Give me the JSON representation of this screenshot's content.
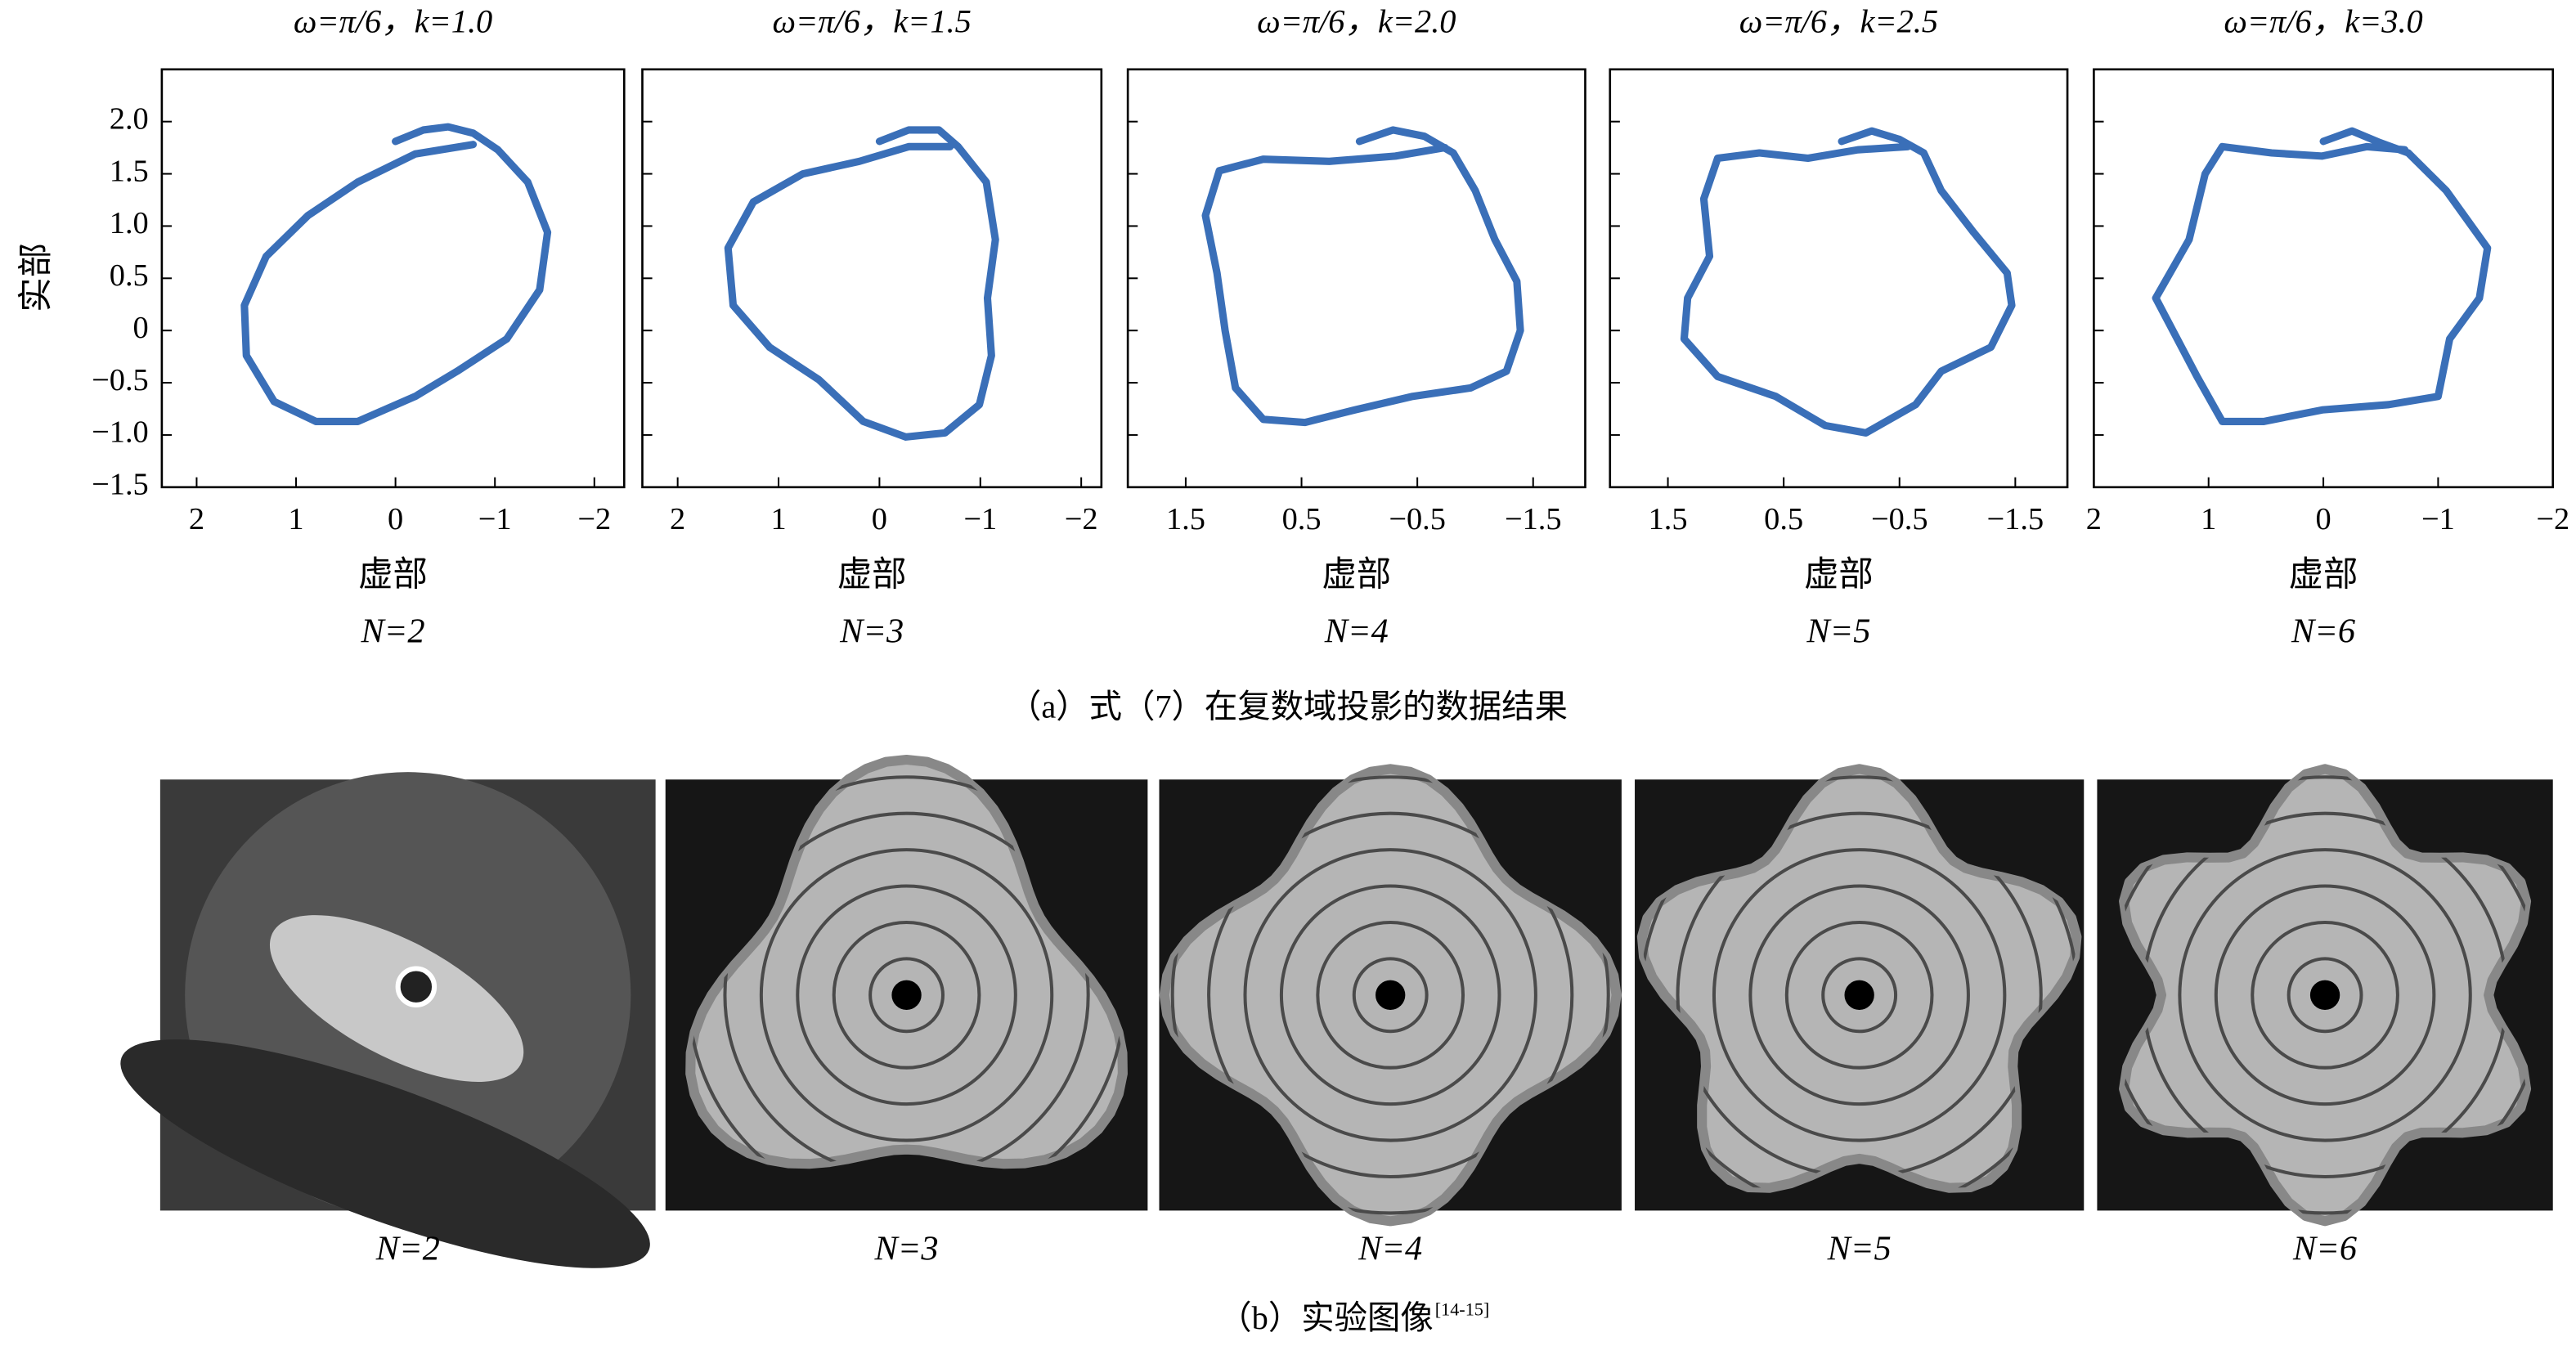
{
  "chart_data": [
    {
      "type": "line",
      "title": "ω=π/6，k=1.0",
      "xlabel": "虚部",
      "ylabel": "实部",
      "subtitle": "N=2",
      "color": "#3a6fb8",
      "show_ytick_labels": true,
      "xlim": [
        2.35,
        -2.3
      ],
      "ylim": [
        -1.5,
        2.5
      ],
      "xticks": [
        2,
        1,
        0,
        {
          "value": -1,
          "label": "−1"
        },
        {
          "value": -2,
          "label": "−2"
        }
      ],
      "yticks": [
        {
          "value": -1.5,
          "label": "−1.5"
        },
        {
          "value": -1,
          "label": "−1.0"
        },
        {
          "value": -0.5,
          "label": "−0.5"
        },
        0,
        0.5,
        {
          "value": 1,
          "label": "1.0"
        },
        1.5,
        {
          "value": 2,
          "label": "2.0"
        }
      ],
      "x": [
        0,
        -0.28,
        -0.53,
        -0.78,
        -1.03,
        -1.33,
        -1.53,
        -1.45,
        -1.12,
        -0.62,
        -0.2,
        0.38,
        0.8,
        1.22,
        1.5,
        1.52,
        1.3,
        0.88,
        0.38,
        -0.2,
        -0.78
      ],
      "values": [
        1.81,
        1.92,
        1.95,
        1.89,
        1.73,
        1.42,
        0.94,
        0.39,
        -0.08,
        -0.39,
        -0.63,
        -0.87,
        -0.87,
        -0.68,
        -0.24,
        0.24,
        0.71,
        1.1,
        1.42,
        1.69,
        1.78
      ]
    },
    {
      "type": "line",
      "title": "ω=π/6，k=1.5",
      "xlabel": "虚部",
      "subtitle": "N=3",
      "color": "#3a6fb8",
      "show_ytick_labels": false,
      "xlim": [
        2.35,
        -2.2
      ],
      "ylim": [
        -1.5,
        2.5
      ],
      "xticks": [
        2,
        1,
        0,
        {
          "value": -1,
          "label": "−1"
        },
        {
          "value": -2,
          "label": "−2"
        }
      ],
      "yticks": [
        -1.5,
        -1,
        -0.5,
        0,
        0.5,
        1,
        1.5,
        2
      ],
      "x": [
        0,
        -0.29,
        -0.59,
        -0.78,
        -1.06,
        -1.15,
        -1.07,
        -1.11,
        -0.99,
        -0.65,
        -0.26,
        0.16,
        0.6,
        1.09,
        1.45,
        1.5,
        1.25,
        0.76,
        0.2,
        -0.29,
        -0.7
      ],
      "values": [
        1.81,
        1.92,
        1.92,
        1.76,
        1.42,
        0.87,
        0.31,
        -0.24,
        -0.71,
        -0.98,
        -1.02,
        -0.87,
        -0.47,
        -0.16,
        0.24,
        0.79,
        1.23,
        1.5,
        1.62,
        1.76,
        1.76
      ]
    },
    {
      "type": "line",
      "title": "ω=π/6，k=2.0",
      "xlabel": "虚部",
      "subtitle": "N=4",
      "color": "#3a6fb8",
      "show_ytick_labels": false,
      "xlim": [
        2.0,
        -1.95
      ],
      "ylim": [
        -1.5,
        2.5
      ],
      "xticks": [
        1.5,
        0.5,
        {
          "value": -0.5,
          "label": "−0.5"
        },
        {
          "value": -1.5,
          "label": "−1.5"
        }
      ],
      "yticks": [
        -1.5,
        -1,
        -0.5,
        0,
        0.5,
        1,
        1.5,
        2
      ],
      "x": [
        0,
        -0.29,
        -0.56,
        -0.81,
        -1.0,
        -1.17,
        -1.36,
        -1.39,
        -1.27,
        -0.96,
        -0.46,
        0.04,
        0.47,
        0.83,
        1.07,
        1.16,
        1.23,
        1.33,
        1.21,
        0.83,
        0.26,
        -0.31,
        -0.74
      ],
      "values": [
        1.81,
        1.92,
        1.86,
        1.7,
        1.34,
        0.87,
        0.47,
        0,
        -0.39,
        -0.55,
        -0.63,
        -0.76,
        -0.88,
        -0.85,
        -0.55,
        0,
        0.55,
        1.1,
        1.53,
        1.64,
        1.62,
        1.67,
        1.75
      ]
    },
    {
      "type": "line",
      "title": "ω=π/6，k=2.5",
      "xlabel": "虚部",
      "subtitle": "N=5",
      "color": "#3a6fb8",
      "show_ytick_labels": false,
      "xlim": [
        2.0,
        -1.95
      ],
      "ylim": [
        -1.5,
        2.5
      ],
      "xticks": [
        1.5,
        0.5,
        {
          "value": -0.5,
          "label": "−0.5"
        },
        {
          "value": -1.5,
          "label": "−1.5"
        }
      ],
      "yticks": [
        -1.5,
        -1,
        -0.5,
        0,
        0.5,
        1,
        1.5,
        2
      ],
      "x": [
        0,
        -0.26,
        -0.5,
        -0.71,
        -0.86,
        -1.14,
        -1.43,
        -1.47,
        -1.29,
        -0.86,
        -0.64,
        -0.21,
        0.14,
        0.57,
        1.07,
        1.36,
        1.33,
        1.14,
        1.19,
        1.07,
        0.71,
        0.29,
        -0.14,
        -0.57
      ],
      "values": [
        1.81,
        1.91,
        1.83,
        1.7,
        1.34,
        0.94,
        0.55,
        0.24,
        -0.16,
        -0.39,
        -0.71,
        -0.98,
        -0.91,
        -0.63,
        -0.44,
        -0.08,
        0.31,
        0.71,
        1.26,
        1.65,
        1.7,
        1.65,
        1.73,
        1.76
      ]
    },
    {
      "type": "line",
      "title": "ω=π/6，k=3.0",
      "xlabel": "虚部",
      "subtitle": "N=6",
      "color": "#3a6fb8",
      "show_ytick_labels": false,
      "xlim": [
        2,
        -2
      ],
      "ylim": [
        -1.5,
        2.5
      ],
      "xticks": [
        2,
        1,
        0,
        {
          "value": -1,
          "label": "−1"
        },
        {
          "value": -2,
          "label": "−2"
        }
      ],
      "yticks": [
        -1.5,
        -1,
        -0.5,
        0,
        0.5,
        1,
        1.5,
        2
      ],
      "x": [
        0,
        -0.25,
        -0.49,
        -0.74,
        -1.07,
        -1.43,
        -1.36,
        -1.1,
        -1.0,
        -0.57,
        0.01,
        0.52,
        0.88,
        1.1,
        1.46,
        1.17,
        1.03,
        0.88,
        0.45,
        0.01,
        -0.38,
        -0.71
      ],
      "values": [
        1.81,
        1.91,
        1.8,
        1.7,
        1.34,
        0.79,
        0.31,
        -0.08,
        -0.63,
        -0.71,
        -0.76,
        -0.87,
        -0.87,
        -0.44,
        0.31,
        0.87,
        1.5,
        1.76,
        1.7,
        1.67,
        1.76,
        1.73
      ]
    }
  ],
  "figure": {
    "caption_a": "（a）式（7）在复数域投影的数据结果",
    "photo_labels": [
      "N=2",
      "N=3",
      "N=4",
      "N=5",
      "N=6"
    ],
    "caption_b": "（b）实验图像",
    "caption_b_ref": "[14-15]"
  }
}
